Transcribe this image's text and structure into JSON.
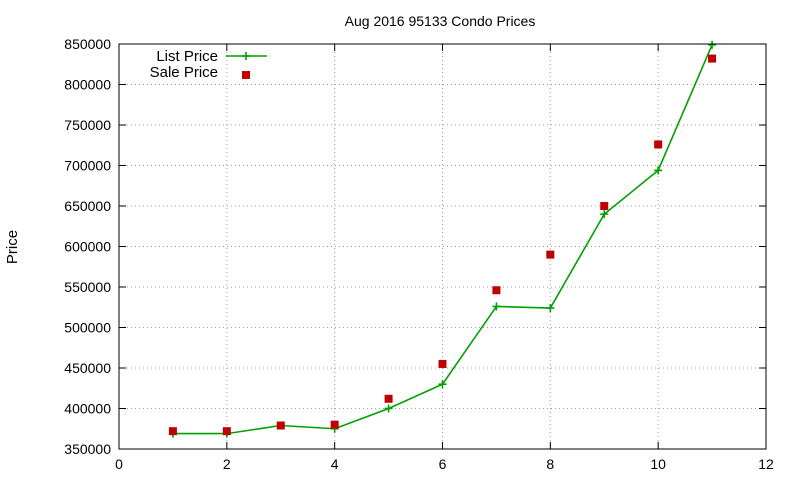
{
  "chart_data": {
    "type": "line",
    "title": "Aug 2016 95133 Condo Prices",
    "xlabel": "",
    "ylabel": "Price",
    "xlim": [
      0,
      12
    ],
    "ylim": [
      350000,
      850000
    ],
    "xticks": [
      0,
      2,
      4,
      6,
      8,
      10,
      12
    ],
    "yticks": [
      350000,
      400000,
      450000,
      500000,
      550000,
      600000,
      650000,
      700000,
      750000,
      800000,
      850000
    ],
    "grid": true,
    "legend_position": "top-left",
    "series": [
      {
        "name": "List Price",
        "style": "line-with-plus-markers",
        "color": "#00a000",
        "x": [
          1,
          2,
          3,
          4,
          5,
          6,
          7,
          8,
          9,
          10,
          11
        ],
        "values": [
          369000,
          369000,
          379000,
          375000,
          400000,
          430000,
          526000,
          524000,
          640000,
          694000,
          849000
        ]
      },
      {
        "name": "Sale Price",
        "style": "square-markers",
        "color": "#c00000",
        "x": [
          1,
          2,
          3,
          4,
          5,
          6,
          7,
          8,
          9,
          10,
          11
        ],
        "values": [
          372000,
          372000,
          379000,
          380000,
          412000,
          455000,
          546000,
          590000,
          650000,
          726000,
          832000
        ]
      }
    ]
  }
}
